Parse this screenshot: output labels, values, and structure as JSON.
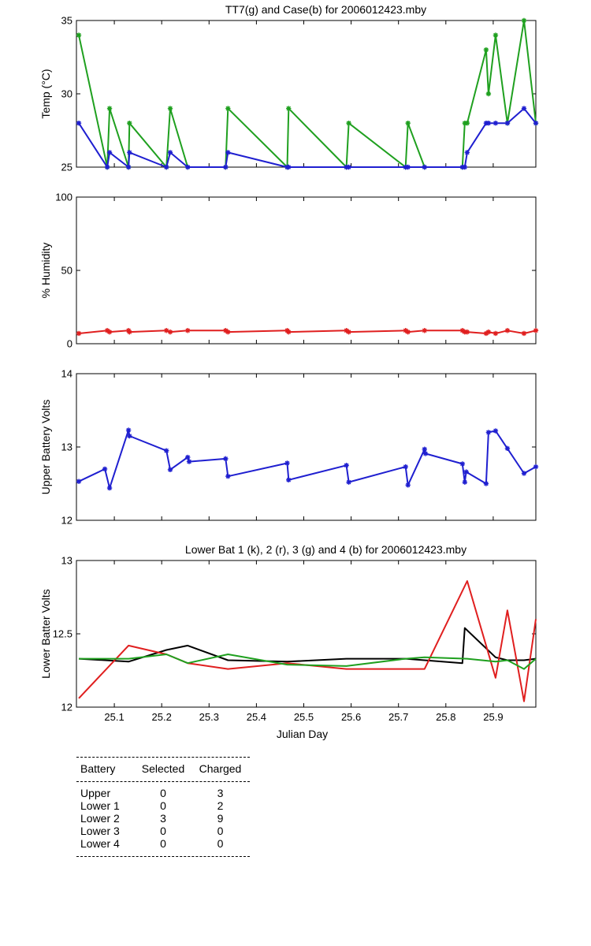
{
  "chart_data": [
    {
      "type": "line",
      "title": "TT7(g) and Case(b) for 2006012423.mby",
      "xlabel": "",
      "ylabel": "Temp  (°C)",
      "xlim": [
        25.02,
        25.99
      ],
      "ylim": [
        25,
        35
      ],
      "yticks": [
        25,
        30,
        35
      ],
      "marker": "star",
      "series": [
        {
          "color": "#1fa01f",
          "points": [
            [
              25.025,
              34
            ],
            [
              25.085,
              25
            ],
            [
              25.09,
              29
            ],
            [
              25.13,
              25
            ],
            [
              25.132,
              28
            ],
            [
              25.21,
              25
            ],
            [
              25.218,
              29
            ],
            [
              25.255,
              25
            ],
            [
              25.335,
              25
            ],
            [
              25.34,
              29
            ],
            [
              25.465,
              25
            ],
            [
              25.468,
              29
            ],
            [
              25.59,
              25
            ],
            [
              25.595,
              28
            ],
            [
              25.715,
              25
            ],
            [
              25.72,
              28
            ],
            [
              25.755,
              25
            ],
            [
              25.835,
              25
            ],
            [
              25.84,
              28
            ],
            [
              25.845,
              28
            ],
            [
              25.885,
              33
            ],
            [
              25.89,
              30
            ],
            [
              25.905,
              34
            ],
            [
              25.93,
              28
            ],
            [
              25.965,
              35
            ],
            [
              25.99,
              28
            ]
          ]
        },
        {
          "color": "#1f1fd0",
          "points": [
            [
              25.025,
              28
            ],
            [
              25.085,
              25
            ],
            [
              25.09,
              26
            ],
            [
              25.13,
              25
            ],
            [
              25.132,
              26
            ],
            [
              25.21,
              25
            ],
            [
              25.218,
              26
            ],
            [
              25.255,
              25
            ],
            [
              25.335,
              25
            ],
            [
              25.34,
              26
            ],
            [
              25.465,
              25
            ],
            [
              25.468,
              25
            ],
            [
              25.59,
              25
            ],
            [
              25.595,
              25
            ],
            [
              25.715,
              25
            ],
            [
              25.72,
              25
            ],
            [
              25.755,
              25
            ],
            [
              25.835,
              25
            ],
            [
              25.84,
              25
            ],
            [
              25.845,
              26
            ],
            [
              25.885,
              28
            ],
            [
              25.89,
              28
            ],
            [
              25.905,
              28
            ],
            [
              25.93,
              28
            ],
            [
              25.965,
              29
            ],
            [
              25.99,
              28
            ]
          ]
        }
      ]
    },
    {
      "type": "line",
      "title": "",
      "xlabel": "",
      "ylabel": "% Humidity",
      "xlim": [
        25.02,
        25.99
      ],
      "ylim": [
        0,
        100
      ],
      "yticks": [
        0,
        50,
        100
      ],
      "marker": "star",
      "series": [
        {
          "color": "#e01f1f",
          "points": [
            [
              25.025,
              7
            ],
            [
              25.085,
              9
            ],
            [
              25.09,
              8
            ],
            [
              25.13,
              9
            ],
            [
              25.132,
              8
            ],
            [
              25.21,
              9
            ],
            [
              25.218,
              8
            ],
            [
              25.255,
              9
            ],
            [
              25.335,
              9
            ],
            [
              25.34,
              8
            ],
            [
              25.465,
              9
            ],
            [
              25.468,
              8
            ],
            [
              25.59,
              9
            ],
            [
              25.595,
              8
            ],
            [
              25.715,
              9
            ],
            [
              25.72,
              8
            ],
            [
              25.755,
              9
            ],
            [
              25.835,
              9
            ],
            [
              25.84,
              8
            ],
            [
              25.845,
              8
            ],
            [
              25.885,
              7
            ],
            [
              25.89,
              8
            ],
            [
              25.905,
              7
            ],
            [
              25.93,
              9
            ],
            [
              25.965,
              7
            ],
            [
              25.99,
              9
            ]
          ]
        }
      ]
    },
    {
      "type": "line",
      "title": "",
      "xlabel": "",
      "ylabel": "Upper Battery Volts",
      "xlim": [
        25.02,
        25.99
      ],
      "ylim": [
        12,
        14
      ],
      "yticks": [
        12,
        13,
        14
      ],
      "marker": "star",
      "series": [
        {
          "color": "#1f1fd0",
          "points": [
            [
              25.025,
              12.53
            ],
            [
              25.08,
              12.7
            ],
            [
              25.09,
              12.44
            ],
            [
              25.13,
              13.23
            ],
            [
              25.132,
              13.15
            ],
            [
              25.21,
              12.95
            ],
            [
              25.218,
              12.69
            ],
            [
              25.255,
              12.86
            ],
            [
              25.258,
              12.8
            ],
            [
              25.335,
              12.84
            ],
            [
              25.34,
              12.6
            ],
            [
              25.465,
              12.78
            ],
            [
              25.468,
              12.55
            ],
            [
              25.59,
              12.75
            ],
            [
              25.595,
              12.52
            ],
            [
              25.715,
              12.73
            ],
            [
              25.72,
              12.48
            ],
            [
              25.755,
              12.97
            ],
            [
              25.757,
              12.91
            ],
            [
              25.835,
              12.77
            ],
            [
              25.84,
              12.52
            ],
            [
              25.843,
              12.66
            ],
            [
              25.885,
              12.5
            ],
            [
              25.89,
              13.2
            ],
            [
              25.905,
              13.22
            ],
            [
              25.93,
              12.98
            ],
            [
              25.965,
              12.64
            ],
            [
              25.99,
              12.73
            ]
          ]
        }
      ]
    },
    {
      "type": "line",
      "title": "Lower Bat 1 (k), 2 (r), 3 (g) and 4 (b) for 2006012423.mby",
      "xlabel": "Julian Day",
      "ylabel": "Lower Batter Volts",
      "xlim": [
        25.02,
        25.99
      ],
      "ylim": [
        12,
        13
      ],
      "yticks": [
        12,
        12.5,
        13
      ],
      "xticks": [
        25.1,
        25.2,
        25.3,
        25.4,
        25.5,
        25.6,
        25.7,
        25.8,
        25.9
      ],
      "xticklabels": [
        "25.1",
        "25.2",
        "25.3",
        "25.4",
        "25.5",
        "25.6",
        "25.7",
        "25.8",
        "25.9"
      ],
      "marker": "none",
      "series": [
        {
          "color": "#000000",
          "points": [
            [
              25.025,
              12.33
            ],
            [
              25.13,
              12.31
            ],
            [
              25.21,
              12.39
            ],
            [
              25.255,
              12.42
            ],
            [
              25.34,
              12.32
            ],
            [
              25.465,
              12.31
            ],
            [
              25.59,
              12.33
            ],
            [
              25.715,
              12.33
            ],
            [
              25.755,
              12.32
            ],
            [
              25.835,
              12.3
            ],
            [
              25.84,
              12.54
            ],
            [
              25.905,
              12.34
            ],
            [
              25.93,
              12.32
            ],
            [
              25.965,
              12.32
            ],
            [
              25.99,
              12.33
            ]
          ]
        },
        {
          "color": "#e01f1f",
          "points": [
            [
              25.025,
              12.06
            ],
            [
              25.13,
              12.42
            ],
            [
              25.21,
              12.36
            ],
            [
              25.255,
              12.3
            ],
            [
              25.34,
              12.26
            ],
            [
              25.465,
              12.3
            ],
            [
              25.59,
              12.26
            ],
            [
              25.715,
              12.26
            ],
            [
              25.755,
              12.26
            ],
            [
              25.845,
              12.86
            ],
            [
              25.905,
              12.2
            ],
            [
              25.93,
              12.66
            ],
            [
              25.965,
              12.04
            ],
            [
              25.99,
              12.6
            ]
          ]
        },
        {
          "color": "#1fa01f",
          "points": [
            [
              25.025,
              12.33
            ],
            [
              25.13,
              12.33
            ],
            [
              25.21,
              12.36
            ],
            [
              25.255,
              12.3
            ],
            [
              25.34,
              12.36
            ],
            [
              25.465,
              12.29
            ],
            [
              25.59,
              12.28
            ],
            [
              25.715,
              12.33
            ],
            [
              25.755,
              12.34
            ],
            [
              25.845,
              12.33
            ],
            [
              25.905,
              12.31
            ],
            [
              25.93,
              12.32
            ],
            [
              25.965,
              12.26
            ],
            [
              25.99,
              12.33
            ]
          ]
        }
      ]
    }
  ],
  "battery_table": {
    "headers": [
      "Battery",
      "Selected",
      "Charged"
    ],
    "rows": [
      {
        "battery": "Upper",
        "selected": "0",
        "charged": "3"
      },
      {
        "battery": "Lower 1",
        "selected": "0",
        "charged": "2"
      },
      {
        "battery": "Lower 2",
        "selected": "3",
        "charged": "9"
      },
      {
        "battery": "Lower 3",
        "selected": "0",
        "charged": "0"
      },
      {
        "battery": "Lower 4",
        "selected": "0",
        "charged": "0"
      }
    ]
  }
}
